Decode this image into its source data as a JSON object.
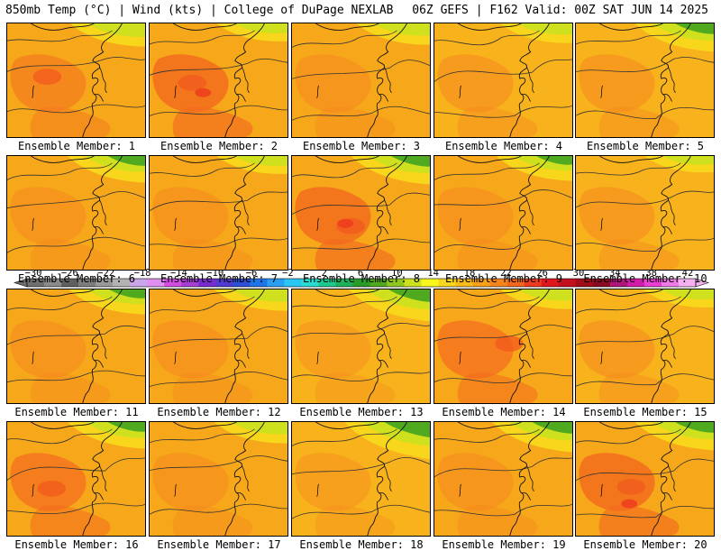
{
  "header": {
    "left": "850mb Temp (°C) | Wind (kts) | College of DuPage NEXLAB",
    "right": "06Z GEFS | F162 Valid: 00Z SAT JUN 14 2025"
  },
  "members": [
    {
      "label": "Ensemble Member: 1",
      "bg": "#f7a81a",
      "hot": "#f47a1e",
      "green": 0.3,
      "hotLevel": 2
    },
    {
      "label": "Ensemble Member: 2",
      "bg": "#f7a81a",
      "hot": "#f36a1e",
      "green": 0.15,
      "hotLevel": 3
    },
    {
      "label": "Ensemble Member: 3",
      "bg": "#f7a81a",
      "hot": "#f48a1e",
      "green": 0.25,
      "hotLevel": 1
    },
    {
      "label": "Ensemble Member: 4",
      "bg": "#f8b21c",
      "hot": "#f48a1e",
      "green": 0.2,
      "hotLevel": 1
    },
    {
      "label": "Ensemble Member: 5",
      "bg": "#f8b21c",
      "hot": "#f48a1e",
      "green": 0.45,
      "hotLevel": 1
    },
    {
      "label": "Ensemble Member: 6",
      "bg": "#f7a81a",
      "hot": "#f48a1e",
      "green": 0.4,
      "hotLevel": 1
    },
    {
      "label": "Ensemble Member: 7",
      "bg": "#f7a81a",
      "hot": "#f48a1e",
      "green": 0.15,
      "hotLevel": 1
    },
    {
      "label": "Ensemble Member: 8",
      "bg": "#f7a81a",
      "hot": "#f36a1e",
      "green": 0.45,
      "hotLevel": 3
    },
    {
      "label": "Ensemble Member: 9",
      "bg": "#f7a81a",
      "hot": "#f48a1e",
      "green": 0.35,
      "hotLevel": 1
    },
    {
      "label": "Ensemble Member: 10",
      "bg": "#f8b21c",
      "hot": "#f48a1e",
      "green": 0.1,
      "hotLevel": 1
    },
    {
      "label": "Ensemble Member: 11",
      "bg": "#f7a81a",
      "hot": "#f48a1e",
      "green": 0.35,
      "hotLevel": 1
    },
    {
      "label": "Ensemble Member: 12",
      "bg": "#f7a81a",
      "hot": "#f48a1e",
      "green": 0.25,
      "hotLevel": 1
    },
    {
      "label": "Ensemble Member: 13",
      "bg": "#f8b21c",
      "hot": "#f48a1e",
      "green": 0.55,
      "hotLevel": 0
    },
    {
      "label": "Ensemble Member: 14",
      "bg": "#f7a81a",
      "hot": "#f36a1e",
      "green": 0.2,
      "hotLevel": 2
    },
    {
      "label": "Ensemble Member: 15",
      "bg": "#f8b21c",
      "hot": "#f48a1e",
      "green": 0.15,
      "hotLevel": 1
    },
    {
      "label": "Ensemble Member: 16",
      "bg": "#f7a81a",
      "hot": "#f36a1e",
      "green": 0.4,
      "hotLevel": 2
    },
    {
      "label": "Ensemble Member: 17",
      "bg": "#f7a81a",
      "hot": "#f48a1e",
      "green": 0.25,
      "hotLevel": 1
    },
    {
      "label": "Ensemble Member: 18",
      "bg": "#f8b21c",
      "hot": "#f48a1e",
      "green": 0.7,
      "hotLevel": 0
    },
    {
      "label": "Ensemble Member: 19",
      "bg": "#f7a81a",
      "hot": "#f48a1e",
      "green": 0.5,
      "hotLevel": 1
    },
    {
      "label": "Ensemble Member: 20",
      "bg": "#f7a81a",
      "hot": "#f36a1e",
      "green": 0.45,
      "hotLevel": 3
    }
  ],
  "colorbar": {
    "ticks": [
      -30,
      -26,
      -22,
      -18,
      -14,
      -10,
      -6,
      -2,
      2,
      6,
      10,
      14,
      18,
      22,
      26,
      30,
      34,
      38,
      42
    ],
    "colors": [
      "#6f6f6f",
      "#8a8a8a",
      "#5f5f5f",
      "#7d7d7d",
      "#999999",
      "#b3b3b3",
      "#c9a6e8",
      "#e08ef0",
      "#d24de0",
      "#a63fd6",
      "#7a2bd0",
      "#4f3ccf",
      "#2d4fd8",
      "#1f74e6",
      "#2a9ef2",
      "#2cc6f2",
      "#29dcd0",
      "#1ec98f",
      "#1cb25a",
      "#2a9b2a",
      "#4faa1f",
      "#8fc71f",
      "#cfe01e",
      "#f7f71e",
      "#f8d61c",
      "#f8bb1a",
      "#f7a01a",
      "#f4851c",
      "#f2661e",
      "#ee3a1e",
      "#e0161e",
      "#c4101e",
      "#a00c1a",
      "#8a0a24",
      "#b0157a",
      "#d21ca8",
      "#ea3ed4",
      "#f07ae6",
      "#f5b0f0"
    ]
  }
}
